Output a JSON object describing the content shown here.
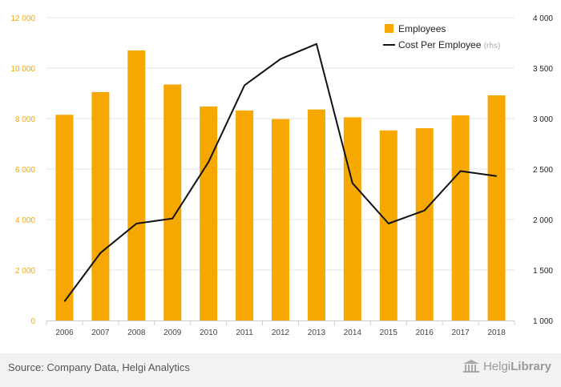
{
  "chart_data": {
    "type": "bar+line",
    "categories": [
      "2006",
      "2007",
      "2008",
      "2009",
      "2010",
      "2011",
      "2012",
      "2013",
      "2014",
      "2015",
      "2016",
      "2017",
      "2018"
    ],
    "series": [
      {
        "name": "Employees",
        "type": "bar",
        "axis": "left",
        "color": "#F7A800",
        "values": [
          8150,
          9050,
          10700,
          9350,
          8480,
          8320,
          7980,
          8360,
          8050,
          7530,
          7620,
          8130,
          8920
        ]
      },
      {
        "name": "Cost Per Employee",
        "suffix": "(rhs)",
        "type": "line",
        "axis": "right",
        "color": "#111111",
        "values": [
          1190,
          1670,
          1960,
          2010,
          2570,
          3330,
          3590,
          3740,
          2360,
          1960,
          2090,
          2480,
          2430
        ]
      }
    ],
    "y_left": {
      "min": 0,
      "max": 12000,
      "ticks": [
        0,
        2000,
        4000,
        6000,
        8000,
        10000,
        12000
      ],
      "tick_labels": [
        "0",
        "2 000",
        "4 000",
        "6 000",
        "8 000",
        "10 000",
        "12 000"
      ],
      "color": "#F7A800"
    },
    "y_right": {
      "min": 1000,
      "max": 4000,
      "ticks": [
        1000,
        1500,
        2000,
        2500,
        3000,
        3500,
        4000
      ],
      "tick_labels": [
        "1 000",
        "1 500",
        "2 000",
        "2 500",
        "3 000",
        "3 500",
        "4 000"
      ],
      "color": "#222222"
    },
    "grid": true,
    "legend_position": "top-right"
  },
  "footer": {
    "source": "Source: Company Data, Helgi Analytics",
    "brand_light": "Helgi",
    "brand_bold": "Library"
  }
}
